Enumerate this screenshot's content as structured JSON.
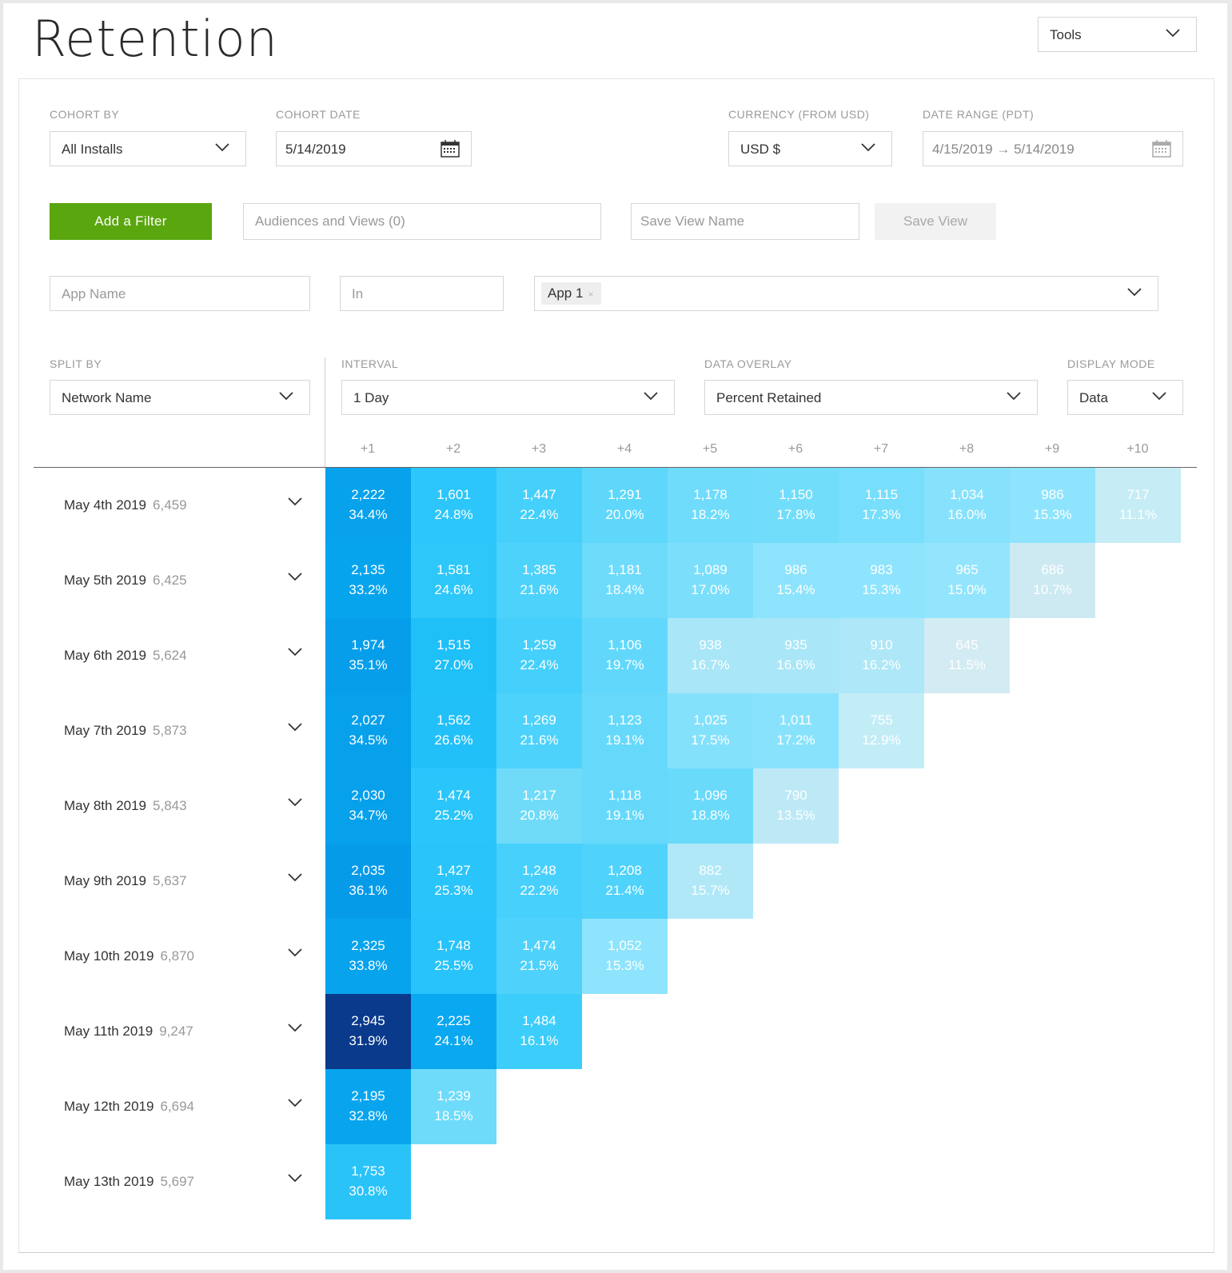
{
  "page_title": "Retention",
  "tools": {
    "label": "Tools"
  },
  "filters": {
    "cohort_by": {
      "label": "COHORT BY",
      "value": "All Installs"
    },
    "cohort_date": {
      "label": "COHORT DATE",
      "value": "5/14/2019"
    },
    "currency": {
      "label": "CURRENCY (FROM USD)",
      "value": "USD $"
    },
    "date_range": {
      "label": "DATE RANGE (PDT)",
      "value": "4/15/2019 → 5/14/2019"
    },
    "add_filter_label": "Add a Filter",
    "audiences_placeholder": "Audiences and Views (0)",
    "save_view_name_placeholder": "Save View Name",
    "save_view_label": "Save View",
    "app_name_placeholder": "App Name",
    "operator_placeholder": "In",
    "app_tag": "App 1",
    "app_tag_remove": "×"
  },
  "controls": {
    "split_by": {
      "label": "SPLIT BY",
      "value": "Network Name"
    },
    "interval": {
      "label": "INTERVAL",
      "value": "1 Day"
    },
    "data_overlay": {
      "label": "DATA OVERLAY",
      "value": "Percent Retained"
    },
    "display_mode": {
      "label": "DISPLAY MODE",
      "value": "Data"
    }
  },
  "colors": {
    "primary_cyan": "#00b4f5",
    "dark_navy": "#0a3a8c",
    "add_filter_green": "#5aa60e"
  },
  "table": {
    "columns": [
      "+1",
      "+2",
      "+3",
      "+4",
      "+5",
      "+6",
      "+7",
      "+8",
      "+9",
      "+10"
    ],
    "rows": [
      {
        "date": "May 4th 2019",
        "count": "6,459",
        "cells": [
          {
            "n": "2,222",
            "p": "34.4%",
            "c": "#07a1ec",
            "t": "#fff"
          },
          {
            "n": "1,601",
            "p": "24.8%",
            "c": "#2cc6fa",
            "t": "#fff"
          },
          {
            "n": "1,447",
            "p": "22.4%",
            "c": "#45cffb",
            "t": "#fff"
          },
          {
            "n": "1,291",
            "p": "20.0%",
            "c": "#5ed7fb",
            "t": "#fff"
          },
          {
            "n": "1,178",
            "p": "18.2%",
            "c": "#70dcfb",
            "t": "#fff"
          },
          {
            "n": "1,150",
            "p": "17.8%",
            "c": "#72ddfb",
            "t": "#fff"
          },
          {
            "n": "1,115",
            "p": "17.3%",
            "c": "#77defb",
            "t": "#fff"
          },
          {
            "n": "1,034",
            "p": "16.0%",
            "c": "#86e2fc",
            "t": "#fff"
          },
          {
            "n": "986",
            "p": "15.3%",
            "c": "#8ee4fc",
            "t": "#fff"
          },
          {
            "n": "717",
            "p": "11.1%",
            "c": "#c6ecf6",
            "t": "#fff"
          }
        ]
      },
      {
        "date": "May 5th 2019",
        "count": "6,425",
        "cells": [
          {
            "n": "2,135",
            "p": "33.2%",
            "c": "#07a4ee",
            "t": "#fff"
          },
          {
            "n": "1,581",
            "p": "24.6%",
            "c": "#2dc7fa",
            "t": "#fff"
          },
          {
            "n": "1,385",
            "p": "21.6%",
            "c": "#4dd2fb",
            "t": "#fff"
          },
          {
            "n": "1,181",
            "p": "18.4%",
            "c": "#6edbfb",
            "t": "#fff"
          },
          {
            "n": "1,089",
            "p": "17.0%",
            "c": "#7bdffc",
            "t": "#fff"
          },
          {
            "n": "986",
            "p": "15.4%",
            "c": "#8de3fc",
            "t": "#fff"
          },
          {
            "n": "983",
            "p": "15.3%",
            "c": "#8ee4fc",
            "t": "#fff"
          },
          {
            "n": "965",
            "p": "15.0%",
            "c": "#92e5fc",
            "t": "#fff"
          },
          {
            "n": "686",
            "p": "10.7%",
            "c": "#cdeaf3",
            "t": "#fff"
          }
        ]
      },
      {
        "date": "May 6th 2019",
        "count": "5,624",
        "cells": [
          {
            "n": "1,974",
            "p": "35.1%",
            "c": "#069eea",
            "t": "#fff"
          },
          {
            "n": "1,515",
            "p": "27.0%",
            "c": "#1fbff8",
            "t": "#fff"
          },
          {
            "n": "1,259",
            "p": "22.4%",
            "c": "#45cffb",
            "t": "#fff"
          },
          {
            "n": "1,106",
            "p": "19.7%",
            "c": "#61d8fb",
            "t": "#fff"
          },
          {
            "n": "938",
            "p": "16.7%",
            "c": "#a8e6f8",
            "t": "#fff"
          },
          {
            "n": "935",
            "p": "16.6%",
            "c": "#a9e6f8",
            "t": "#fff"
          },
          {
            "n": "910",
            "p": "16.2%",
            "c": "#aee7f8",
            "t": "#fff"
          },
          {
            "n": "645",
            "p": "11.5%",
            "c": "#d3ebf2",
            "t": "#fff"
          }
        ]
      },
      {
        "date": "May 7th 2019",
        "count": "5,873",
        "cells": [
          {
            "n": "2,027",
            "p": "34.5%",
            "c": "#06a0eb",
            "t": "#fff"
          },
          {
            "n": "1,562",
            "p": "26.6%",
            "c": "#22c0f9",
            "t": "#fff"
          },
          {
            "n": "1,269",
            "p": "21.6%",
            "c": "#4dd2fb",
            "t": "#fff"
          },
          {
            "n": "1,123",
            "p": "19.1%",
            "c": "#66d9fb",
            "t": "#fff"
          },
          {
            "n": "1,025",
            "p": "17.5%",
            "c": "#84e1fc",
            "t": "#fff"
          },
          {
            "n": "1,011",
            "p": "17.2%",
            "c": "#88e2fc",
            "t": "#fff"
          },
          {
            "n": "755",
            "p": "12.9%",
            "c": "#c2edf7",
            "t": "#fff"
          }
        ]
      },
      {
        "date": "May 8th 2019",
        "count": "5,843",
        "cells": [
          {
            "n": "2,030",
            "p": "34.7%",
            "c": "#06a0eb",
            "t": "#fff"
          },
          {
            "n": "1,474",
            "p": "25.2%",
            "c": "#2ac5fa",
            "t": "#fff"
          },
          {
            "n": "1,217",
            "p": "20.8%",
            "c": "#6fdbf9",
            "t": "#fff"
          },
          {
            "n": "1,118",
            "p": "19.1%",
            "c": "#66d9fb",
            "t": "#fff"
          },
          {
            "n": "1,096",
            "p": "18.8%",
            "c": "#6adafb",
            "t": "#fff"
          },
          {
            "n": "790",
            "p": "13.5%",
            "c": "#bde9f6",
            "t": "#fff"
          }
        ]
      },
      {
        "date": "May 9th 2019",
        "count": "5,637",
        "cells": [
          {
            "n": "2,035",
            "p": "36.1%",
            "c": "#069be9",
            "t": "#fff"
          },
          {
            "n": "1,427",
            "p": "25.3%",
            "c": "#29c4fa",
            "t": "#fff"
          },
          {
            "n": "1,248",
            "p": "22.2%",
            "c": "#47d0fb",
            "t": "#fff"
          },
          {
            "n": "1,208",
            "p": "21.4%",
            "c": "#50d3fb",
            "t": "#fff"
          },
          {
            "n": "882",
            "p": "15.7%",
            "c": "#b0e8f8",
            "t": "#fff"
          }
        ]
      },
      {
        "date": "May 10th 2019",
        "count": "6,870",
        "cells": [
          {
            "n": "2,325",
            "p": "33.8%",
            "c": "#08a3ed",
            "t": "#fff"
          },
          {
            "n": "1,748",
            "p": "25.5%",
            "c": "#27c3fa",
            "t": "#fff"
          },
          {
            "n": "1,474",
            "p": "21.5%",
            "c": "#4ed2fb",
            "t": "#fff"
          },
          {
            "n": "1,052",
            "p": "15.3%",
            "c": "#8ee4fc",
            "t": "#fff"
          }
        ]
      },
      {
        "date": "May 11th 2019",
        "count": "9,247",
        "cells": [
          {
            "n": "2,945",
            "p": "31.9%",
            "c": "#0a3a8c",
            "t": "#fff"
          },
          {
            "n": "2,225",
            "p": "24.1%",
            "c": "#0aa8f0",
            "t": "#fff"
          },
          {
            "n": "1,484",
            "p": "16.1%",
            "c": "#3ccdfa",
            "t": "#fff"
          }
        ]
      },
      {
        "date": "May 12th 2019",
        "count": "6,694",
        "cells": [
          {
            "n": "2,195",
            "p": "32.8%",
            "c": "#08a5ee",
            "t": "#fff"
          },
          {
            "n": "1,239",
            "p": "18.5%",
            "c": "#6edbfb",
            "t": "#fff"
          }
        ]
      },
      {
        "date": "May 13th 2019",
        "count": "5,697",
        "cells": [
          {
            "n": "1,753",
            "p": "30.8%",
            "c": "#29c3f8",
            "t": "#fff"
          }
        ]
      }
    ]
  }
}
